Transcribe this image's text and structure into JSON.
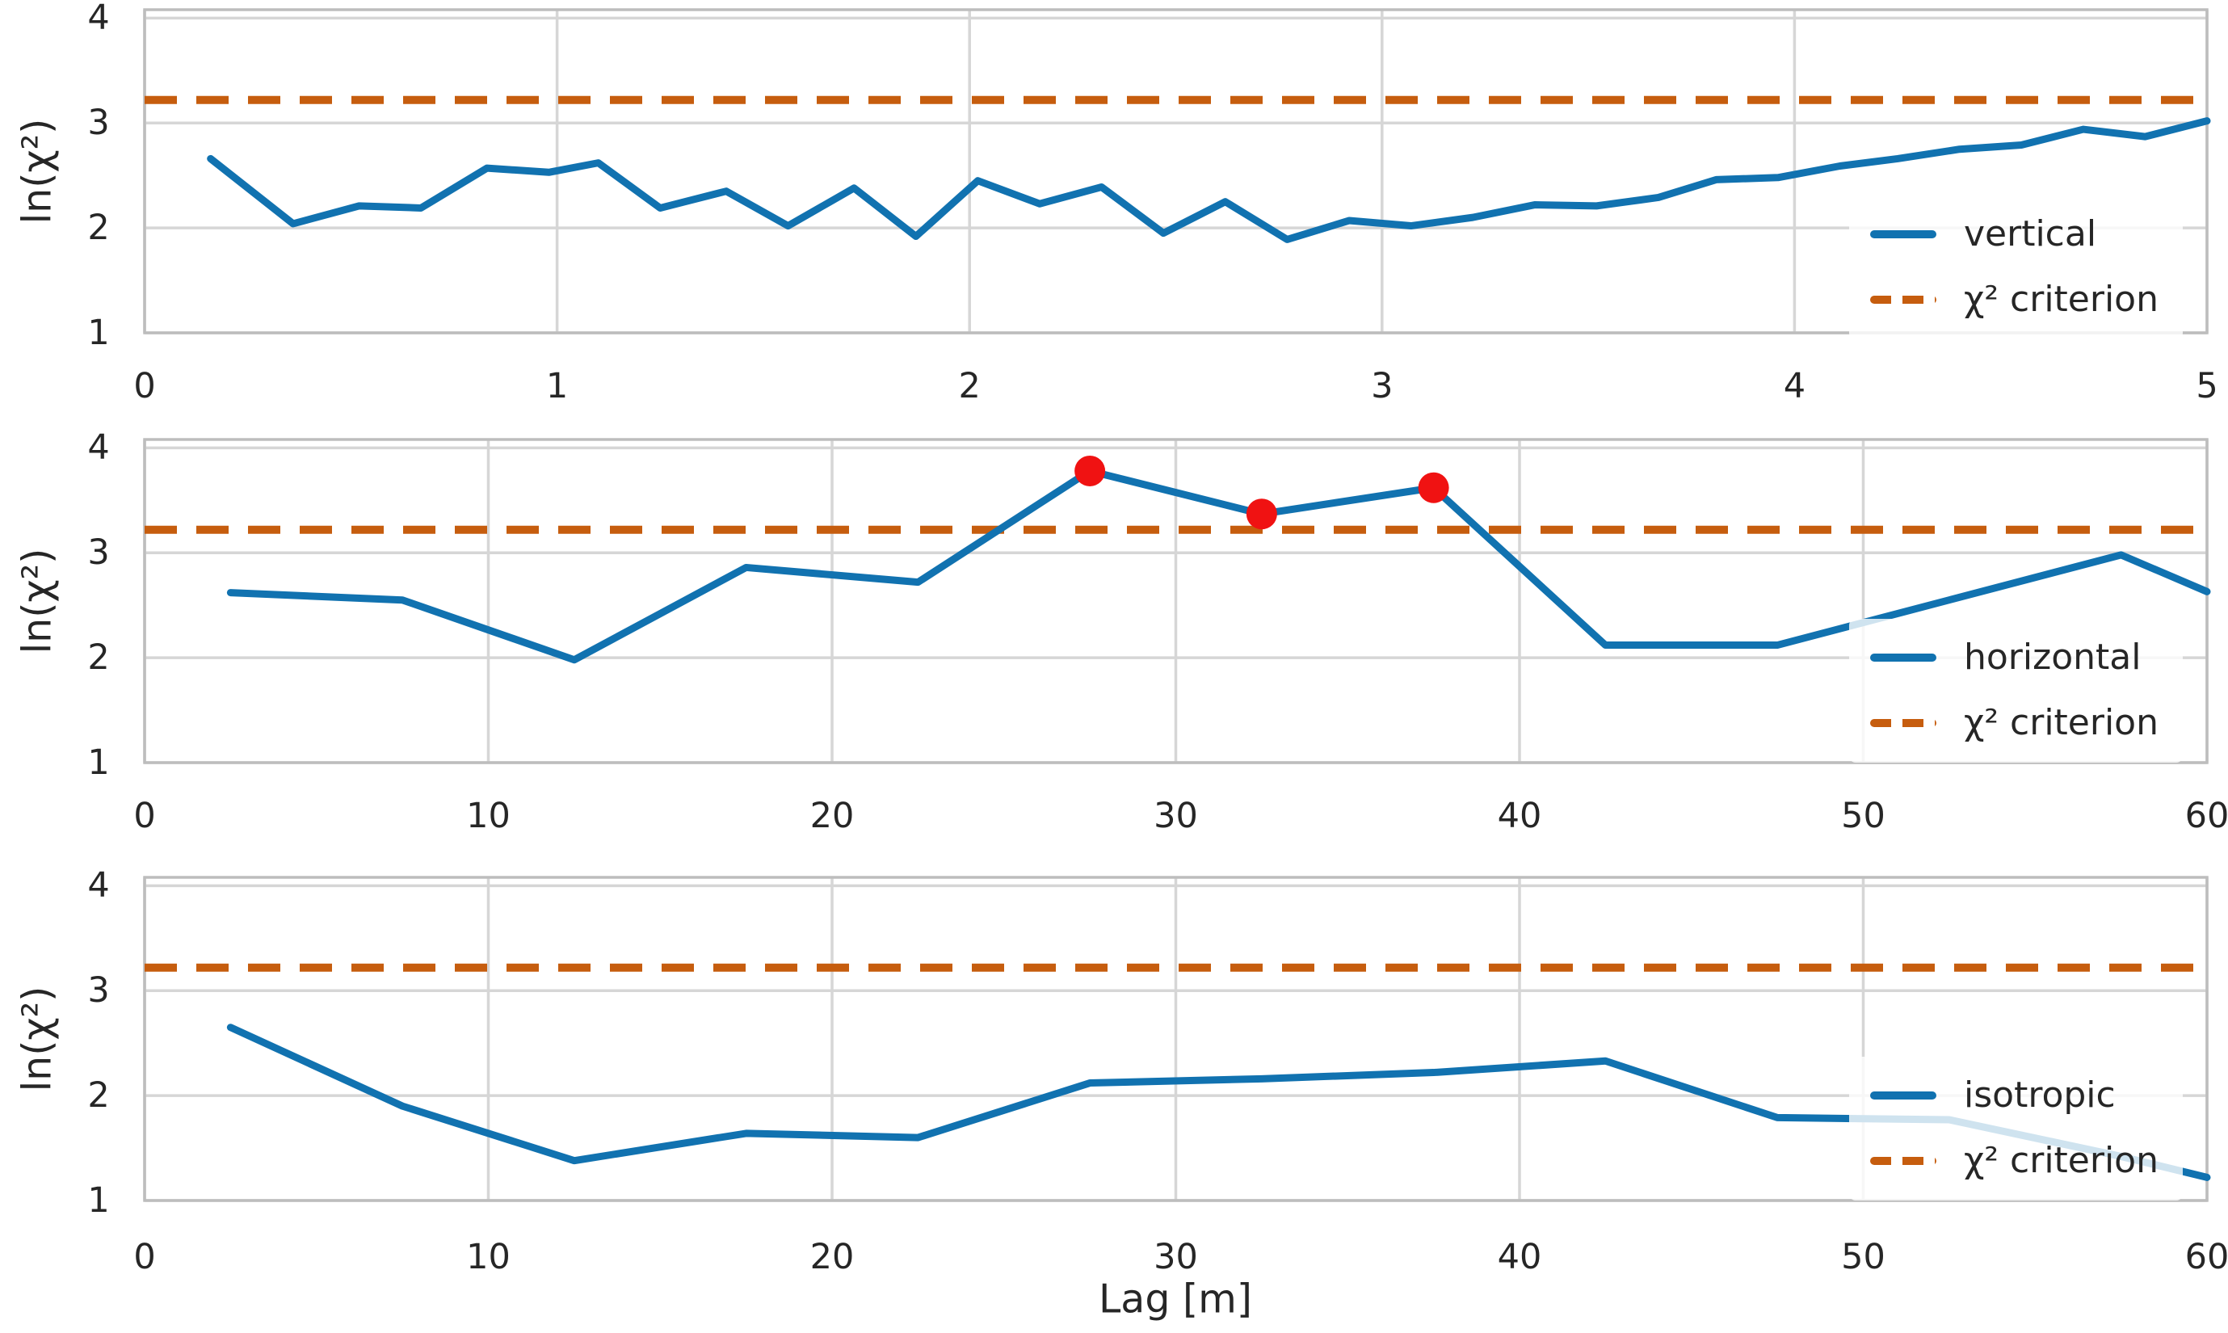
{
  "xlabel": "Lag [m]",
  "styles": {
    "line_color": "#1172b0",
    "criterion_color": "#c65d0e",
    "outlier_color": "#f01212",
    "grid_color": "#d6d6d6",
    "spine_color": "#bdbdbd",
    "text_color": "#262626",
    "legend_bg": "rgba(255,255,255,0.8)"
  },
  "chart_data": [
    {
      "type": "line",
      "name": "vertical",
      "ylabel": "ln(χ²)",
      "xlabel": "",
      "xlim": [
        0,
        5
      ],
      "ylim": [
        1.0,
        4.08
      ],
      "xticks": [
        0,
        1,
        2,
        3,
        4,
        5
      ],
      "yticks": [
        1,
        2,
        3,
        4
      ],
      "grid": true,
      "legend_position": "lower right",
      "series": [
        {
          "name": "vertical",
          "style": "solid",
          "points": [
            [
              0.16,
              2.66
            ],
            [
              0.36,
              2.04
            ],
            [
              0.52,
              2.21
            ],
            [
              0.67,
              2.19
            ],
            [
              0.83,
              2.57
            ],
            [
              0.98,
              2.53
            ],
            [
              1.1,
              2.62
            ],
            [
              1.25,
              2.19
            ],
            [
              1.41,
              2.35
            ],
            [
              1.56,
              2.02
            ],
            [
              1.72,
              2.38
            ],
            [
              1.87,
              1.92
            ],
            [
              2.02,
              2.45
            ],
            [
              2.17,
              2.23
            ],
            [
              2.32,
              2.39
            ],
            [
              2.47,
              1.95
            ],
            [
              2.62,
              2.25
            ],
            [
              2.77,
              1.89
            ],
            [
              2.92,
              2.07
            ],
            [
              3.07,
              2.02
            ],
            [
              3.22,
              2.1
            ],
            [
              3.37,
              2.22
            ],
            [
              3.52,
              2.21
            ],
            [
              3.67,
              2.29
            ],
            [
              3.81,
              2.46
            ],
            [
              3.96,
              2.48
            ],
            [
              4.11,
              2.59
            ],
            [
              4.25,
              2.66
            ],
            [
              4.4,
              2.75
            ],
            [
              4.55,
              2.79
            ],
            [
              4.7,
              2.94
            ],
            [
              4.85,
              2.87
            ],
            [
              5.0,
              3.02
            ]
          ]
        }
      ],
      "criterion": {
        "label": "χ² criterion",
        "value": 3.22,
        "style": "dashed"
      },
      "outliers": [],
      "legend": [
        {
          "label": "vertical"
        },
        {
          "label": "χ² criterion"
        }
      ]
    },
    {
      "type": "line",
      "name": "horizontal",
      "ylabel": "ln(χ²)",
      "xlabel": "",
      "xlim": [
        0,
        60
      ],
      "ylim": [
        1.0,
        4.08
      ],
      "xticks": [
        0,
        10,
        20,
        30,
        40,
        50,
        60
      ],
      "yticks": [
        1,
        2,
        3,
        4
      ],
      "grid": true,
      "legend_position": "lower right",
      "series": [
        {
          "name": "horizontal",
          "style": "solid",
          "points": [
            [
              2.5,
              2.62
            ],
            [
              7.5,
              2.55
            ],
            [
              12.5,
              1.98
            ],
            [
              17.5,
              2.86
            ],
            [
              22.5,
              2.72
            ],
            [
              27.5,
              3.78
            ],
            [
              32.5,
              3.37
            ],
            [
              37.5,
              3.62
            ],
            [
              42.5,
              2.12
            ],
            [
              47.5,
              2.12
            ],
            [
              52.5,
              2.55
            ],
            [
              57.5,
              2.98
            ],
            [
              60,
              2.63
            ]
          ]
        }
      ],
      "criterion": {
        "label": "χ² criterion",
        "value": 3.22,
        "style": "dashed"
      },
      "outliers": [
        [
          27.5,
          3.78
        ],
        [
          32.5,
          3.37
        ],
        [
          37.5,
          3.62
        ]
      ],
      "legend": [
        {
          "label": "horizontal"
        },
        {
          "label": "χ² criterion"
        }
      ]
    },
    {
      "type": "line",
      "name": "isotropic",
      "ylabel": "ln(χ²)",
      "xlabel": "Lag [m]",
      "xlim": [
        0,
        60
      ],
      "ylim": [
        1.0,
        4.08
      ],
      "xticks": [
        0,
        10,
        20,
        30,
        40,
        50,
        60
      ],
      "yticks": [
        1,
        2,
        3,
        4
      ],
      "grid": true,
      "legend_position": "lower right",
      "series": [
        {
          "name": "isotropic",
          "style": "solid",
          "points": [
            [
              2.5,
              2.65
            ],
            [
              7.5,
              1.9
            ],
            [
              12.5,
              1.38
            ],
            [
              17.5,
              1.64
            ],
            [
              22.5,
              1.6
            ],
            [
              27.5,
              2.12
            ],
            [
              32.5,
              2.16
            ],
            [
              37.5,
              2.22
            ],
            [
              42.5,
              2.33
            ],
            [
              47.5,
              1.79
            ],
            [
              52.5,
              1.77
            ],
            [
              57.5,
              1.42
            ],
            [
              60,
              1.22
            ]
          ]
        }
      ],
      "criterion": {
        "label": "χ² criterion",
        "value": 3.22,
        "style": "dashed"
      },
      "outliers": [],
      "legend": [
        {
          "label": "isotropic"
        },
        {
          "label": "χ² criterion"
        }
      ]
    }
  ]
}
